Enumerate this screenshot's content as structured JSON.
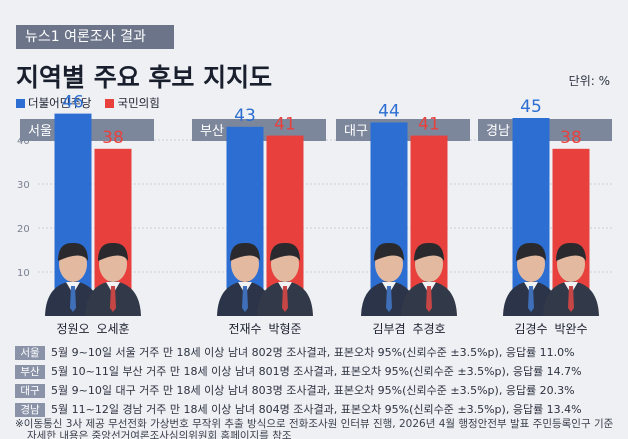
{
  "header": {
    "tag": "뉴스1 여론조사 결과",
    "title": "지역별 주요 후보 지지도",
    "unit": "단위: %"
  },
  "legend": [
    {
      "label": "더불어민주당",
      "color": "#2c6ed2"
    },
    {
      "label": "국민의힘",
      "color": "#e8413d"
    }
  ],
  "colors": {
    "dem": "#2c6ed2",
    "ppp": "#e8413d",
    "region_header": "#7d879c"
  },
  "chart_data": {
    "type": "bar",
    "ylim": [
      0,
      50
    ],
    "yticks": [
      10,
      20,
      30,
      40
    ],
    "grid": true,
    "regions": [
      {
        "region": "서울",
        "candidates": [
          {
            "name": "정원오",
            "party": "dem",
            "value": 46
          },
          {
            "name": "오세훈",
            "party": "ppp",
            "value": 38
          }
        ]
      },
      {
        "region": "부산",
        "candidates": [
          {
            "name": "전재수",
            "party": "dem",
            "value": 43
          },
          {
            "name": "박형준",
            "party": "ppp",
            "value": 41
          }
        ]
      },
      {
        "region": "대구",
        "candidates": [
          {
            "name": "김부겸",
            "party": "dem",
            "value": 44
          },
          {
            "name": "추경호",
            "party": "ppp",
            "value": 41
          }
        ]
      },
      {
        "region": "경남",
        "candidates": [
          {
            "name": "김경수",
            "party": "dem",
            "value": 45
          },
          {
            "name": "박완수",
            "party": "ppp",
            "value": 38
          }
        ]
      }
    ]
  },
  "notes": [
    {
      "region": "서울",
      "text": "5월 9~10일 서울 거주 만 18세 이상 남녀 802명 조사결과, 표본오차 95%(신뢰수준 ±3.5%p), 응답률 11.0%"
    },
    {
      "region": "부산",
      "text": "5월 10~11일 부산 거주 만 18세 이상 남녀 801명 조사결과, 표본오차 95%(신뢰수준 ±3.5%p), 응답률 14.7%"
    },
    {
      "region": "대구",
      "text": "5월 9~10일 대구 거주 만 18세 이상 남녀 803명 조사결과, 표본오차 95%(신뢰수준 ±3.5%p), 응답률 20.3%"
    },
    {
      "region": "경남",
      "text": "5월 11~12일 경남 거주 만 18세 이상 남녀 804명 조사결과, 표본오차 95%(신뢰수준 ±3.5%p), 응답률 13.4%"
    }
  ],
  "footnote": "※이동통신 3사 제공 무선전화 가상번호 무작위 추출 방식으로 전화조사원 인터뷰 진행, 2026년 4월 행정안전부 발표 주민등록인구 기준",
  "footnote2": "자세한 내용은 중앙선거여론조사심의위원회 홈페이지를 참조"
}
